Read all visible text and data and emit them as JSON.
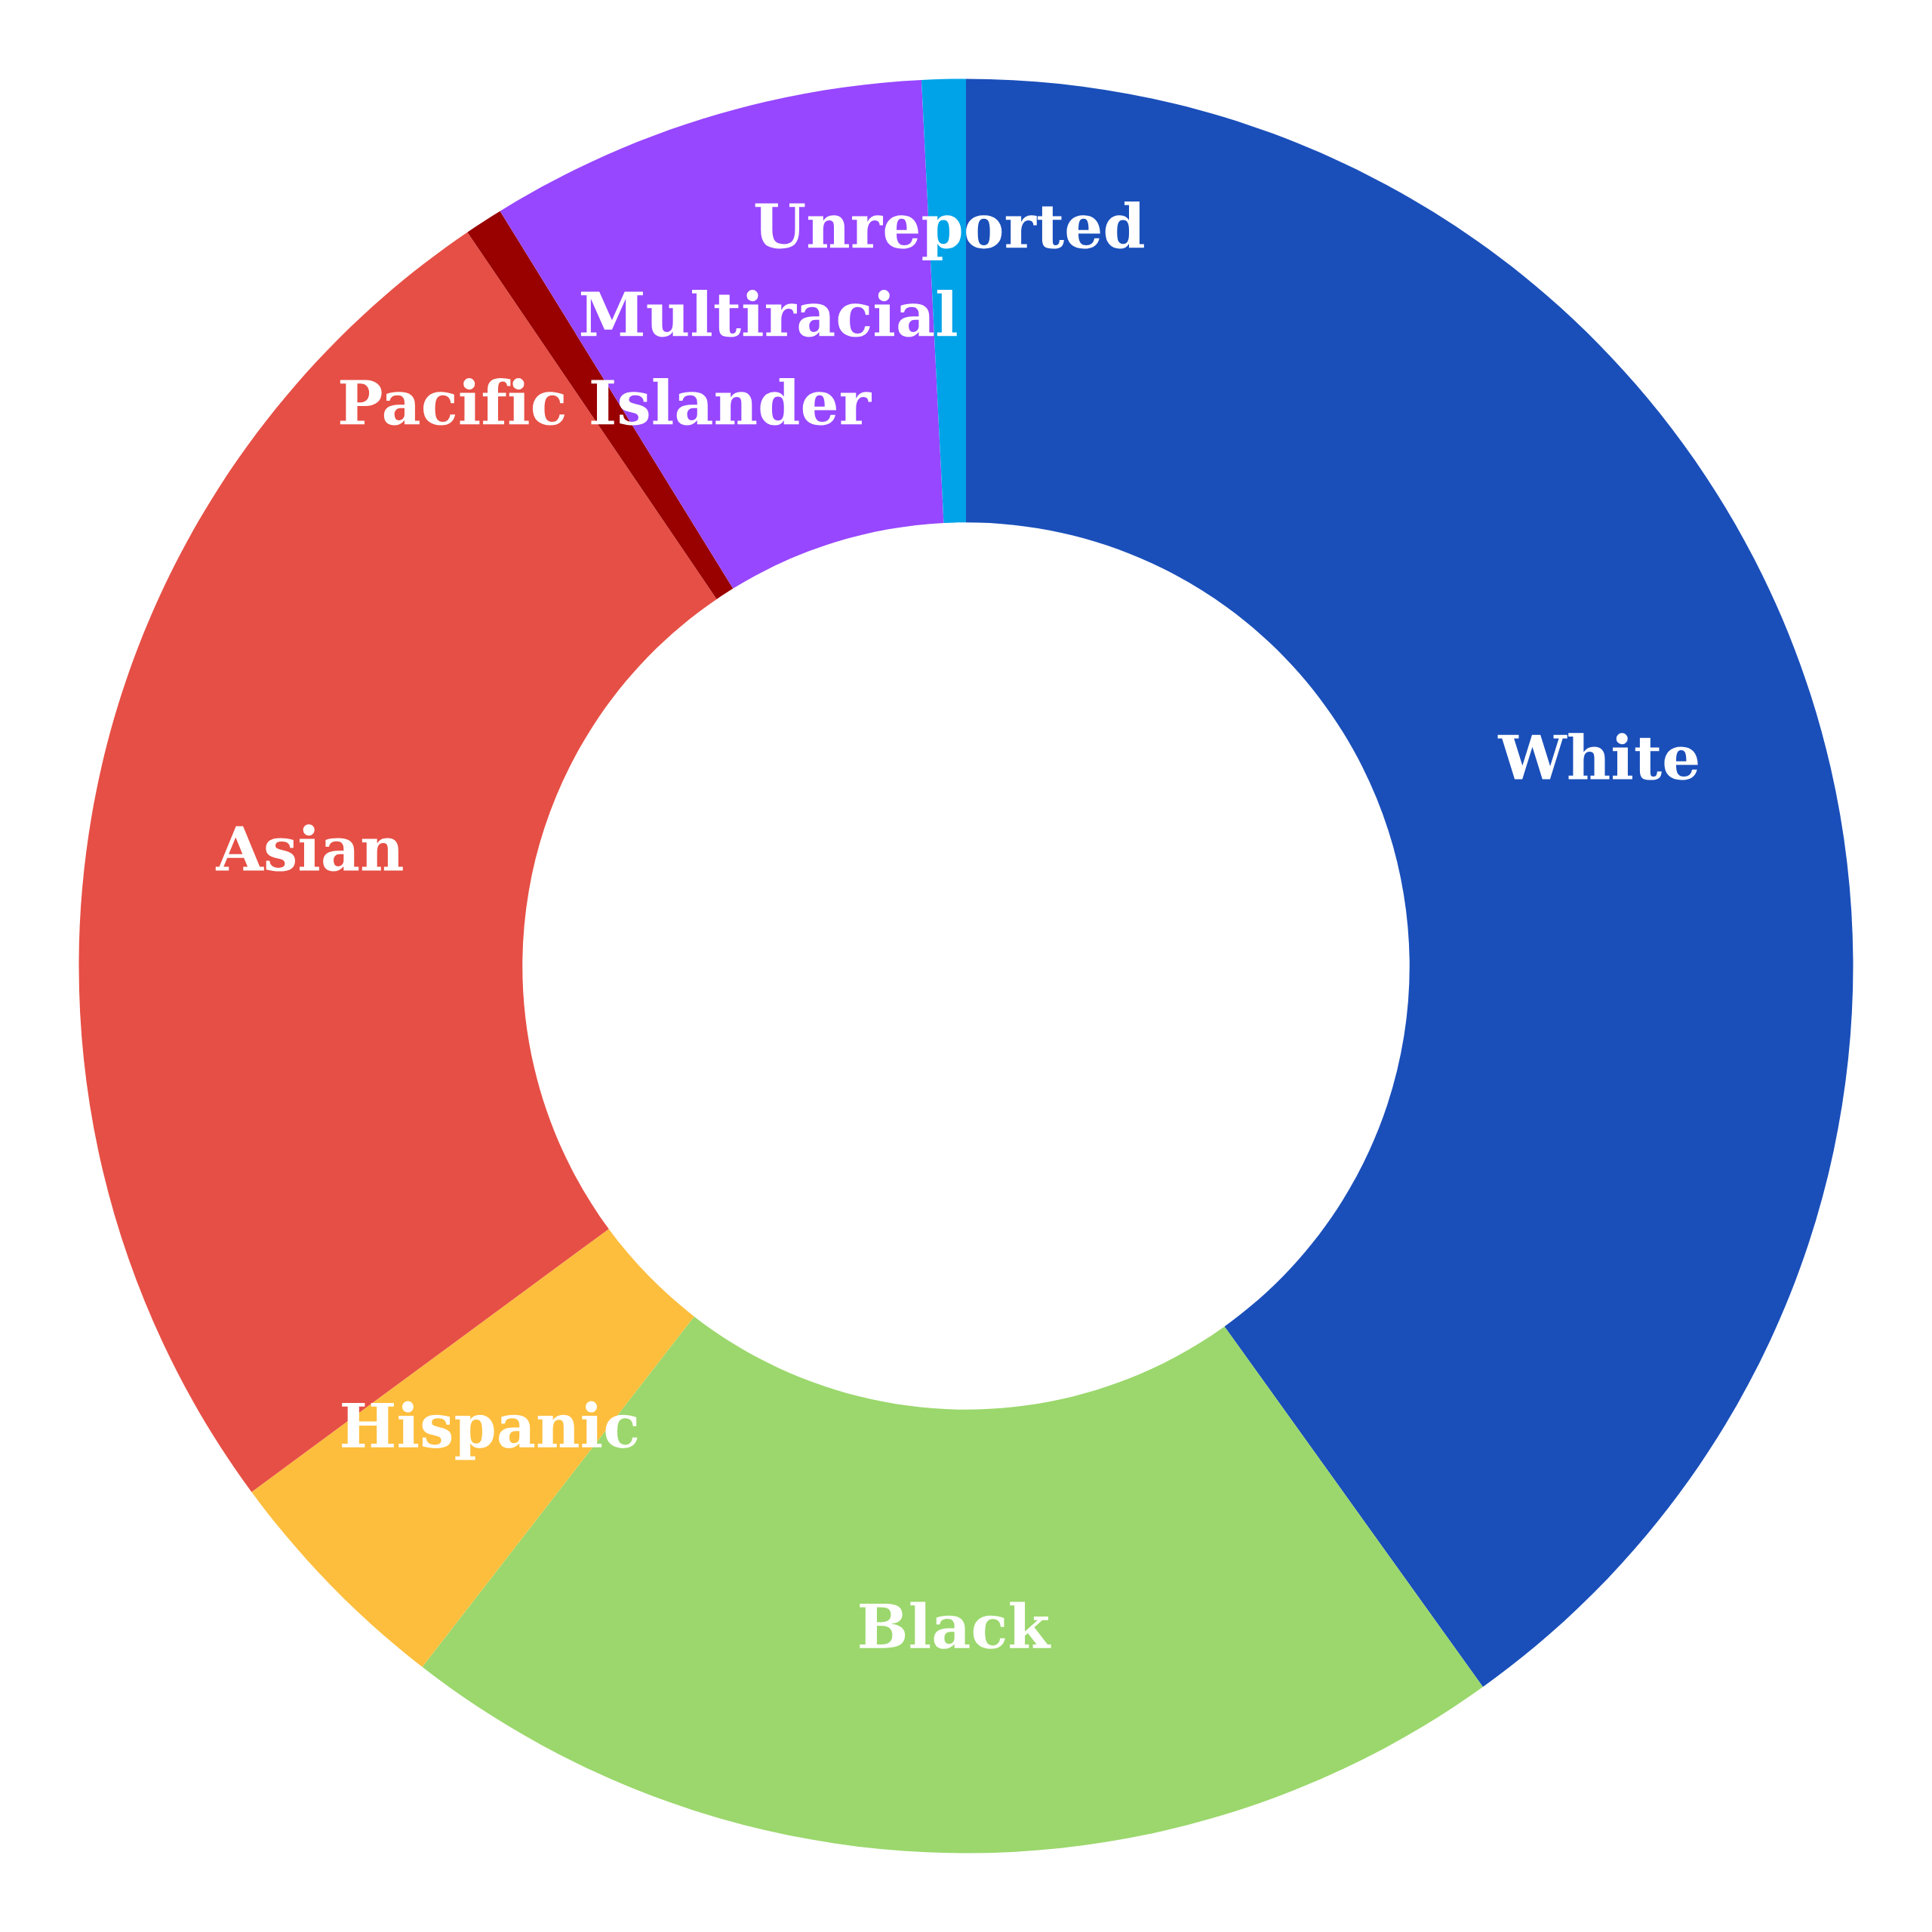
{
  "chart_data": {
    "type": "donut",
    "categories": [
      "White",
      "Black",
      "Hispanic",
      "Asian",
      "Pacific Islander",
      "Multiracial",
      "Unreported"
    ],
    "values": [
      40.1,
      20.4,
      4.4,
      25.6,
      0.7,
      8.0,
      0.8
    ],
    "colors": [
      "#1a4fba",
      "#9bd76c",
      "#fdbe3d",
      "#e64f45",
      "#990000",
      "#9747ff",
      "#00a3e8"
    ]
  }
}
